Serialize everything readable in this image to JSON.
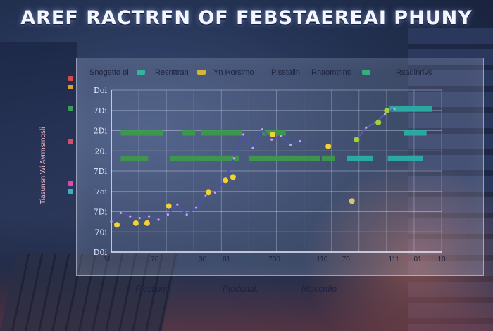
{
  "title": "AREF RACTRFN OF FEBSTAEREAI PHUNY",
  "legend": [
    {
      "label": "Snogetto ol",
      "color": "#33b59c"
    },
    {
      "label": "Resnttran",
      "color": "#d6b43a"
    },
    {
      "label": "Yn Horsimo",
      "color": ""
    },
    {
      "label": "Pisstalin",
      "color": ""
    },
    {
      "label": "Rnaomtrins",
      "color": "#35b07a"
    },
    {
      "label": "Rsadinrivs",
      "color": ""
    }
  ],
  "side_label": "Tiasunsn Wi Avrrnsrngsli",
  "footer": [
    "Ftestions.",
    "Ptedonal.",
    "Ntsecnfio"
  ],
  "chart_data": {
    "type": "line",
    "y_tick_labels": [
      "Doi",
      "7Di",
      "2Di",
      "20.",
      "7Di",
      "7oi",
      "7Di",
      "70i",
      "D0i"
    ],
    "x_tick_labels": [
      "31",
      "",
      "70",
      "",
      "30",
      "01",
      "",
      "700",
      "",
      "110",
      "70",
      "",
      "111",
      "01",
      "10"
    ],
    "grid": true,
    "series": [
      {
        "color": "#5050a8",
        "x": [
          0,
          1,
          2,
          3,
          4,
          5,
          6,
          7,
          8,
          9,
          10,
          11,
          12,
          13,
          14,
          15,
          16,
          17,
          18,
          19,
          20
        ],
        "y": [
          1.8,
          2.3,
          2.1,
          2.0,
          2.1,
          1.9,
          2.2,
          2.8,
          2.2,
          2.6,
          3.3,
          3.5,
          4.2,
          5.5,
          6.9,
          6.1,
          7.2,
          6.6,
          6.8,
          6.3,
          6.5
        ]
      },
      {
        "color": "#5a5ab0",
        "x": [
          26,
          27,
          28,
          29,
          30
        ],
        "y": [
          6.6,
          7.3,
          7.6,
          8.1,
          8.4
        ]
      }
    ],
    "bars": [
      {
        "color": "#3d9a4c",
        "y": 7.0,
        "x": [
          1.0,
          5.5
        ]
      },
      {
        "color": "#3d9a4c",
        "y": 7.0,
        "x": [
          7.5,
          8.9
        ]
      },
      {
        "color": "#3d9a4c",
        "y": 7.0,
        "x": [
          9.5,
          13.8
        ]
      },
      {
        "color": "#3d9a4c",
        "y": 7.0,
        "x": [
          16.0,
          18.5
        ]
      },
      {
        "color": "#3d9a4c",
        "y": 5.5,
        "x": [
          1.0,
          3.9
        ]
      },
      {
        "color": "#3d9a4c",
        "y": 5.5,
        "x": [
          6.2,
          13.5
        ]
      },
      {
        "color": "#3d9a4c",
        "y": 5.5,
        "x": [
          14.6,
          22.1
        ]
      },
      {
        "color": "#3d9a4c",
        "y": 5.5,
        "x": [
          22.3,
          23.7
        ]
      },
      {
        "color": "#2ab0a8",
        "y": 8.4,
        "x": [
          29.5,
          34.0
        ]
      },
      {
        "color": "#2ab0a8",
        "y": 7.0,
        "x": [
          31.0,
          33.4
        ]
      },
      {
        "color": "#2ab0a8",
        "y": 5.5,
        "x": [
          25.0,
          27.7
        ]
      },
      {
        "color": "#2ab0a8",
        "y": 5.5,
        "x": [
          29.3,
          33.0
        ]
      }
    ],
    "points": [
      {
        "x": 0.6,
        "y": 1.6,
        "color": "#f2d23a"
      },
      {
        "x": 2.6,
        "y": 1.7,
        "color": "#f2d23a"
      },
      {
        "x": 3.8,
        "y": 1.7,
        "color": "#f2d23a"
      },
      {
        "x": 6.1,
        "y": 2.7,
        "color": "#f2d23a"
      },
      {
        "x": 10.3,
        "y": 3.5,
        "color": "#f2d23a"
      },
      {
        "x": 12.1,
        "y": 4.2,
        "color": "#f2d23a"
      },
      {
        "x": 12.9,
        "y": 4.4,
        "color": "#f2d23a"
      },
      {
        "x": 17.1,
        "y": 6.9,
        "color": "#f2d23a"
      },
      {
        "x": 23.0,
        "y": 6.2,
        "color": "#f2d23a"
      },
      {
        "x": 25.5,
        "y": 3.0,
        "color": "#d8c27a"
      },
      {
        "x": 26.0,
        "y": 6.6,
        "color": "#9ed13a"
      },
      {
        "x": 28.3,
        "y": 7.6,
        "color": "#9ed13a"
      },
      {
        "x": 29.2,
        "y": 8.3,
        "color": "#9ed13a"
      }
    ],
    "xlim": [
      0,
      35
    ],
    "ylim": [
      0,
      9.5
    ]
  }
}
